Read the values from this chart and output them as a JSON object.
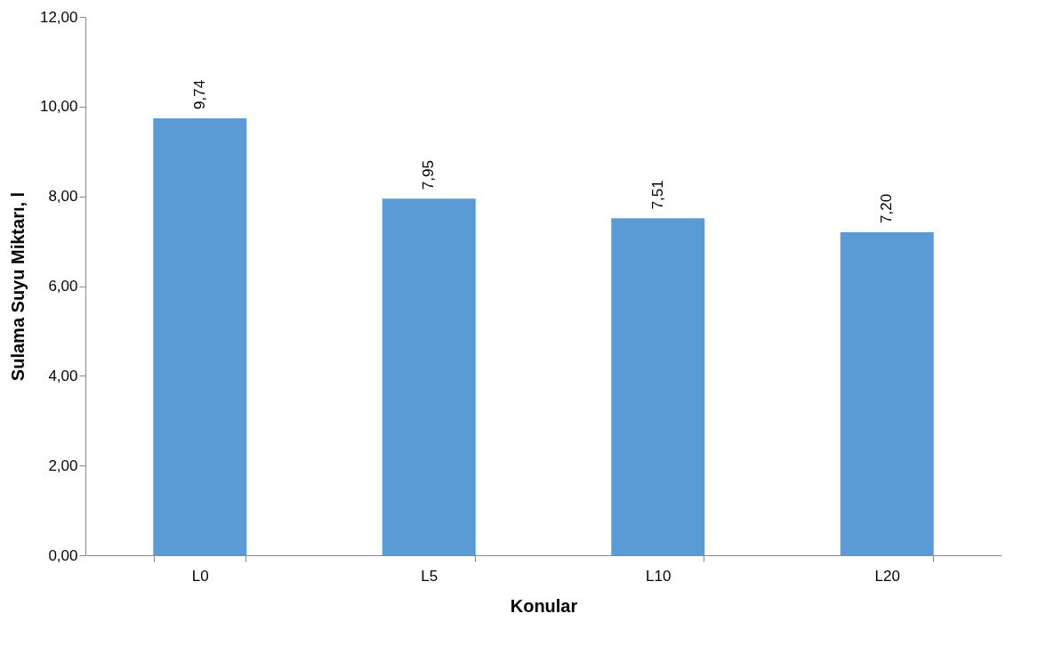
{
  "chart_data": {
    "type": "bar",
    "xlabel": "Konular",
    "ylabel": "Sulama Suyu Miktarı, l",
    "categories": [
      "L0",
      "L5",
      "L10",
      "L20"
    ],
    "values": [
      9.74,
      7.95,
      7.51,
      7.2
    ],
    "value_labels": [
      "9,74",
      "7,95",
      "7,51",
      "7,20"
    ],
    "color": "#5b9bd5",
    "ylim": [
      0,
      12
    ],
    "yticks": [
      {
        "value": 0,
        "label": "0,00"
      },
      {
        "value": 2,
        "label": "2,00"
      },
      {
        "value": 4,
        "label": "4,00"
      },
      {
        "value": 6,
        "label": "6,00"
      },
      {
        "value": 8,
        "label": "8,00"
      },
      {
        "value": 10,
        "label": "10,00"
      },
      {
        "value": 12,
        "label": "12,00"
      }
    ],
    "grid": false
  }
}
